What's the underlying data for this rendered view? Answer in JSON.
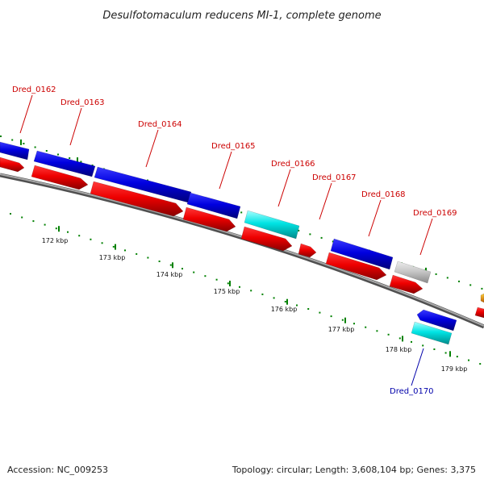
{
  "title": "Desulfotomaculum reducens MI-1, complete genome",
  "footer": {
    "accession": "Accession: NC_009253",
    "summary": "Topology: circular; Length: 3,608,104 bp; Genes: 3,375"
  },
  "colors": {
    "gene_label_red": "#cc0000",
    "gene_label_blue": "#0000aa",
    "tick_green": "#008000",
    "blue_gene": "#0000e6",
    "red_gene": "#ee0000",
    "cyan_gene": "#00e6e6",
    "gray_gene": "#c8c8c8",
    "backbone": "#808080"
  },
  "scale_labels": [
    "172 kbp",
    "173 kbp",
    "174 kbp",
    "175 kbp",
    "176 kbp",
    "177 kbp",
    "178 kbp",
    "179 kbp"
  ],
  "gene_labels": [
    {
      "text": "Dred_0162",
      "color": "red"
    },
    {
      "text": "Dred_0163",
      "color": "red"
    },
    {
      "text": "Dred_0164",
      "color": "red"
    },
    {
      "text": "Dred_0165",
      "color": "red"
    },
    {
      "text": "Dred_0166",
      "color": "red"
    },
    {
      "text": "Dred_0167",
      "color": "red"
    },
    {
      "text": "Dred_0168",
      "color": "red"
    },
    {
      "text": "Dred_0169",
      "color": "red"
    },
    {
      "text": "Dred_0170",
      "color": "blue"
    }
  ]
}
